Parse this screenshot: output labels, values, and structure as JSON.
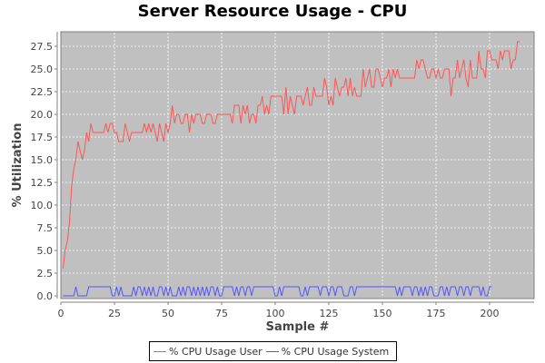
{
  "chart_data": {
    "type": "line",
    "title": "Server Resource Usage - CPU",
    "xlabel": "Sample #",
    "ylabel": "% Utilization",
    "xlim": [
      0,
      220
    ],
    "ylim": [
      0,
      29.3
    ],
    "x_ticks": [
      "0",
      "25",
      "50",
      "75",
      "100",
      "125",
      "150",
      "175",
      "200"
    ],
    "y_ticks": [
      "0.0",
      "2.5",
      "5.0",
      "7.5",
      "10.0",
      "12.5",
      "15.0",
      "17.5",
      "20.0",
      "22.5",
      "25.0",
      "27.5"
    ],
    "grid": true,
    "legend_position": "bottom",
    "background_color": "#c0c0c0",
    "series": [
      {
        "name": "% CPU Usage User",
        "color": "#ff5555",
        "x_start": 1,
        "values": [
          3,
          5,
          6,
          8,
          12,
          14,
          15,
          17,
          16,
          15,
          16,
          18,
          17,
          19,
          18,
          18,
          18,
          18,
          18,
          18,
          19,
          18,
          19,
          19,
          18,
          18,
          17,
          17,
          17,
          19,
          18,
          17,
          18,
          18,
          18,
          18,
          18,
          18,
          19,
          18,
          19,
          18,
          19,
          18,
          17,
          19,
          18,
          17,
          19,
          18,
          19,
          21,
          19,
          20,
          20,
          19,
          19,
          20,
          20,
          18,
          20,
          19,
          20,
          20,
          20,
          19,
          19,
          20,
          20,
          20,
          19,
          19,
          20,
          20,
          20,
          20,
          20,
          20,
          20,
          19,
          21,
          21,
          21,
          19,
          21,
          20,
          21,
          19,
          20,
          20,
          19,
          21,
          21,
          22,
          20,
          21,
          20,
          22,
          22,
          22,
          22,
          22,
          22,
          20,
          23,
          20,
          22,
          21,
          20,
          22,
          22,
          22,
          21,
          22,
          23,
          21,
          21,
          23,
          22,
          22,
          22,
          22,
          24,
          23,
          21,
          22,
          21,
          24,
          23,
          22,
          23,
          23,
          24,
          22,
          24,
          22,
          23,
          22,
          22,
          22,
          25,
          23,
          24,
          25,
          23,
          23,
          25,
          25,
          24,
          23,
          24,
          24,
          25,
          23,
          25,
          24,
          25,
          24,
          24,
          24,
          24,
          24,
          24,
          24,
          24,
          26,
          25,
          26,
          26,
          25,
          24,
          24,
          25,
          25,
          24,
          25,
          24,
          24,
          25,
          25,
          25,
          22,
          24,
          24,
          26,
          24,
          25,
          26,
          24,
          23,
          26,
          24,
          24,
          24,
          27,
          25,
          25,
          24,
          27,
          27,
          26,
          26,
          26,
          25,
          27,
          26,
          27,
          27,
          27,
          25,
          26,
          26,
          28,
          28
        ],
        "values_note": "approximate, read from plot"
      },
      {
        "name": "% CPU Usage System",
        "color": "#5555ff",
        "x_start": 1,
        "values": [
          0,
          0,
          0,
          0,
          0,
          0,
          1,
          0,
          0,
          0,
          0,
          0,
          1,
          1,
          1,
          1,
          1,
          1,
          1,
          1,
          1,
          1,
          1,
          0,
          0,
          1,
          0,
          1,
          0,
          0,
          0,
          0,
          0,
          1,
          0,
          1,
          1,
          0,
          1,
          0,
          1,
          0,
          1,
          0,
          0,
          1,
          1,
          0,
          1,
          0,
          1,
          0,
          0,
          0,
          1,
          0,
          1,
          0,
          1,
          1,
          0,
          1,
          0,
          1,
          0,
          1,
          0,
          1,
          0,
          1,
          1,
          0,
          1,
          0,
          0,
          1,
          1,
          1,
          1,
          1,
          0,
          1,
          0,
          1,
          1,
          0,
          1,
          1,
          0,
          1,
          1,
          1,
          1,
          1,
          1,
          1,
          1,
          1,
          1,
          0,
          0,
          1,
          0,
          1,
          1,
          1,
          1,
          1,
          1,
          1,
          1,
          0,
          0,
          1,
          0,
          1,
          1,
          1,
          1,
          1,
          0,
          1,
          1,
          1,
          0,
          1,
          1,
          0,
          1,
          1,
          1,
          0,
          0,
          0,
          1,
          1,
          0,
          1,
          1,
          1,
          1,
          1,
          1,
          1,
          1,
          1,
          1,
          1,
          1,
          1,
          1,
          1,
          1,
          1,
          1,
          1,
          0,
          1,
          0,
          1,
          1,
          1,
          1,
          0,
          1,
          1,
          0,
          1,
          0,
          1,
          0,
          1,
          1,
          0,
          0,
          0,
          1,
          1,
          0,
          1,
          0,
          1,
          1,
          1,
          0,
          1,
          1,
          0,
          1,
          1,
          0,
          1,
          1,
          1,
          1,
          0,
          1,
          0,
          0,
          1,
          1
        ],
        "values_note": "approximate, read from plot"
      }
    ]
  },
  "title": "Server Resource Usage - CPU",
  "legend": {
    "items": [
      {
        "label": "% CPU Usage User",
        "color": "#ff5555"
      },
      {
        "label": "% CPU Usage System",
        "color": "#5555ff"
      }
    ]
  }
}
